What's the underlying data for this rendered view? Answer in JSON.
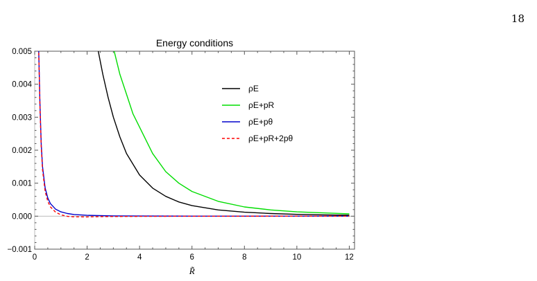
{
  "page": {
    "number": "18"
  },
  "chart_data": {
    "type": "line",
    "title": "Energy conditions",
    "xlabel": "R̃",
    "ylabel": "",
    "xlim": [
      0,
      12.2
    ],
    "ylim": [
      -0.001,
      0.005
    ],
    "xticks": [
      0,
      2,
      4,
      6,
      8,
      10,
      12
    ],
    "yticks": [
      -0.001,
      0.0,
      0.001,
      0.002,
      0.003,
      0.004,
      0.005
    ],
    "xtick_labels": [
      "0",
      "2",
      "4",
      "6",
      "8",
      "10",
      "12"
    ],
    "ytick_labels": [
      "−0.001",
      "0.000",
      "0.001",
      "0.002",
      "0.003",
      "0.004",
      "0.005"
    ],
    "grid": false,
    "legend_position": "upper-right",
    "series": [
      {
        "name": "ρE",
        "color": "#000000",
        "dash": "solid",
        "x": [
          2.4,
          2.6,
          2.8,
          3.0,
          3.25,
          3.5,
          4.0,
          4.5,
          5.0,
          5.5,
          6.0,
          7.0,
          8.0,
          9.0,
          10.0,
          11.0,
          12.0
        ],
        "y": [
          0.0051,
          0.0043,
          0.0036,
          0.003,
          0.0024,
          0.0019,
          0.00125,
          0.00085,
          0.0006,
          0.00043,
          0.00032,
          0.00019,
          0.00012,
          8e-05,
          5.5e-05,
          4e-05,
          3e-05
        ]
      },
      {
        "name": "ρE+pR",
        "color": "#00dd00",
        "dash": "solid",
        "x": [
          3.0,
          3.25,
          3.5,
          3.75,
          4.0,
          4.5,
          5.0,
          5.5,
          6.0,
          7.0,
          8.0,
          9.0,
          10.0,
          11.0,
          12.0
        ],
        "y": [
          0.0051,
          0.0043,
          0.0037,
          0.0031,
          0.0027,
          0.0019,
          0.00135,
          0.001,
          0.00075,
          0.00045,
          0.00028,
          0.00019,
          0.00013,
          0.0001,
          7e-05
        ]
      },
      {
        "name": "ρE+pθ",
        "color": "#0000cc",
        "dash": "solid",
        "x": [
          0.15,
          0.2,
          0.25,
          0.3,
          0.4,
          0.5,
          0.6,
          0.8,
          1.0,
          1.25,
          1.5,
          2.0,
          3.0,
          4.0,
          6.0,
          8.0,
          10.0,
          12.0
        ],
        "y": [
          0.0051,
          0.0034,
          0.0022,
          0.0015,
          0.00085,
          0.00055,
          0.00038,
          0.00021,
          0.00013,
          8e-05,
          5e-05,
          2.5e-05,
          1e-05,
          5e-06,
          1.5e-06,
          5e-07,
          0.0,
          0.0
        ]
      },
      {
        "name": "ρE+pR+2pθ",
        "color": "#ff0000",
        "dash": "dashed",
        "x": [
          0.15,
          0.2,
          0.25,
          0.3,
          0.4,
          0.5,
          0.6,
          0.8,
          1.0,
          1.25,
          1.5,
          2.0,
          2.5,
          3.0,
          4.0,
          6.0,
          8.0,
          10.0,
          12.0
        ],
        "y": [
          0.0051,
          0.0033,
          0.0021,
          0.0014,
          0.00075,
          0.00045,
          0.00028,
          0.00012,
          4e-05,
          -5e-06,
          -2e-05,
          -2.2e-05,
          -1.5e-05,
          -1e-05,
          -5e-06,
          -2e-06,
          -1e-06,
          0.0,
          0.0
        ]
      }
    ]
  }
}
